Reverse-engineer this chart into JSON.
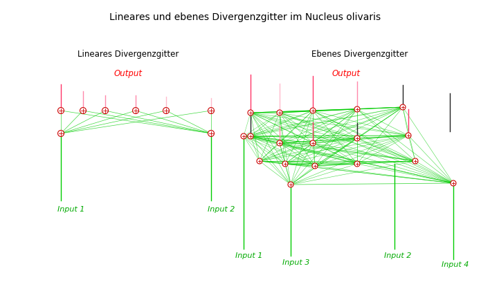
{
  "title": "Lineares und ebenes Divergenzgitter im Nucleus olivaris",
  "title_fontsize": 10,
  "left_title": "Lineares Divergenzgitter",
  "right_title": "Ebenes Divergenzgitter",
  "left_output_label": "Output",
  "right_output_label": "Output",
  "left_input1_label": "Input 1",
  "left_input2_label": "Input 2",
  "right_input1_label": "Input 1",
  "right_input2_label": "Input 2",
  "right_input3_label": "Input 3",
  "right_input4_label": "Input 4",
  "green": "#00cc00",
  "pink_bright": "#ff3366",
  "pink_mid": "#ff88aa",
  "pink_light": "#ffbbcc",
  "black_line": "#222222",
  "node_ec": "#cc0000",
  "label_green": "#00aa00",
  "label_red": "#ff0000",
  "bg": "#ffffff"
}
